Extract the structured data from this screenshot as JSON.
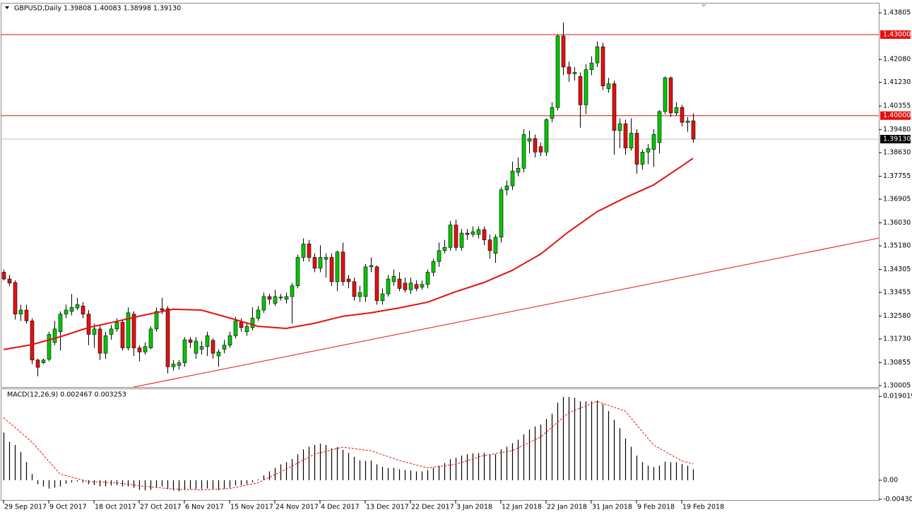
{
  "chart_data": [
    {
      "type": "candlestick",
      "title": "GBPUSD,Daily  1.39808 1.40083 1.38998 1.39130",
      "categories": [
        "29 Sep 2017",
        null,
        null,
        null,
        null,
        null,
        null,
        null,
        "9 Oct 2017",
        null,
        null,
        null,
        null,
        null,
        null,
        null,
        "18 Oct 2017",
        null,
        null,
        null,
        null,
        null,
        null,
        null,
        "27 Oct 2017",
        null,
        null,
        null,
        null,
        null,
        null,
        null,
        "6 Nov 2017",
        null,
        null,
        null,
        null,
        null,
        null,
        null,
        "15 Nov 2017",
        null,
        null,
        null,
        null,
        null,
        null,
        null,
        "24 Nov 2017",
        null,
        null,
        null,
        null,
        null,
        null,
        null,
        "4 Dec 2017",
        null,
        null,
        null,
        null,
        null,
        null,
        null,
        "13 Dec 2017",
        null,
        null,
        null,
        null,
        null,
        null,
        null,
        "22 Dec 2017",
        null,
        null,
        null,
        null,
        null,
        null,
        null,
        "3 Jan 2018",
        null,
        null,
        null,
        null,
        null,
        null,
        null,
        "12 Jan 2018",
        null,
        null,
        null,
        null,
        null,
        null,
        null,
        "22 Jan 2018",
        null,
        null,
        null,
        null,
        null,
        null,
        null,
        "31 Jan 2018",
        null,
        null,
        null,
        null,
        null,
        null,
        null,
        "9 Feb 2018",
        null,
        null,
        null,
        null,
        null,
        null,
        null,
        "19 Feb 2018",
        null,
        null
      ],
      "open": [
        1.342,
        1.3395,
        1.3382,
        1.3265,
        1.328,
        1.324,
        1.3095,
        1.3085,
        1.3098,
        1.316,
        1.32,
        1.3265,
        1.3275,
        1.3288,
        1.3295,
        1.3265,
        1.319,
        1.321,
        1.312,
        1.319,
        1.321,
        1.3235,
        1.314,
        1.3265,
        1.314,
        1.3125,
        1.314,
        1.321,
        1.3285,
        1.3285,
        1.307,
        1.3075,
        1.3085,
        1.317,
        1.312,
        1.3135,
        1.3145,
        1.3168,
        1.311,
        1.3135,
        1.315,
        1.3185,
        1.3235,
        1.32,
        1.3215,
        1.325,
        1.328,
        1.333,
        1.3305,
        1.3328,
        1.332,
        1.333,
        1.337,
        1.3475,
        1.3525,
        1.3475,
        1.3435,
        1.3468,
        1.3475,
        1.3385,
        1.3495,
        1.3395,
        1.3385,
        1.333,
        1.333,
        1.344,
        1.344,
        1.3315,
        1.334,
        1.3385,
        1.3395,
        1.338,
        1.3355,
        1.3375,
        1.3365,
        1.3375,
        1.342,
        1.346,
        1.35,
        1.3512,
        1.3595,
        1.3512,
        1.3565,
        1.356,
        1.356,
        1.3578,
        1.354,
        1.349,
        1.355,
        1.3725,
        1.374,
        1.379,
        1.3805,
        1.3905,
        1.3915,
        1.3885,
        1.3865,
        1.399,
        1.403,
        1.4295,
        1.418,
        1.4155,
        1.4145,
        1.404,
        1.417,
        1.4195,
        1.4255,
        1.41,
        1.4118,
        1.3945,
        1.397,
        1.388,
        1.3935,
        1.382,
        1.3865,
        1.3875,
        1.39,
        1.4015,
        1.414,
        1.401,
        1.403,
        1.3975,
        1.39808
      ],
      "high": [
        1.343,
        1.341,
        1.339,
        1.33,
        1.33,
        1.325,
        1.31,
        1.31,
        1.32,
        1.324,
        1.3275,
        1.33,
        1.334,
        1.3325,
        1.331,
        1.328,
        1.323,
        1.3225,
        1.32,
        1.3225,
        1.325,
        1.3245,
        1.329,
        1.3275,
        1.315,
        1.316,
        1.322,
        1.329,
        1.3325,
        1.3295,
        1.3095,
        1.3095,
        1.318,
        1.318,
        1.318,
        1.3165,
        1.32,
        1.3175,
        1.3135,
        1.317,
        1.32,
        1.3255,
        1.325,
        1.3235,
        1.329,
        1.3295,
        1.3345,
        1.334,
        1.3355,
        1.334,
        1.3345,
        1.338,
        1.3485,
        1.3545,
        1.354,
        1.349,
        1.352,
        1.349,
        1.349,
        1.35,
        1.353,
        1.341,
        1.34,
        1.337,
        1.345,
        1.3475,
        1.3445,
        1.336,
        1.341,
        1.343,
        1.342,
        1.34,
        1.34,
        1.339,
        1.339,
        1.343,
        1.347,
        1.353,
        1.354,
        1.361,
        1.3615,
        1.358,
        1.358,
        1.359,
        1.359,
        1.359,
        1.356,
        1.356,
        1.3735,
        1.376,
        1.383,
        1.3845,
        1.395,
        1.3945,
        1.393,
        1.39,
        1.399,
        1.405,
        1.43,
        1.4345,
        1.42,
        1.418,
        1.416,
        1.419,
        1.422,
        1.4275,
        1.427,
        1.414,
        1.413,
        1.399,
        1.3985,
        1.399,
        1.395,
        1.3875,
        1.3895,
        1.395,
        1.402,
        1.4145,
        1.4145,
        1.405,
        1.404,
        1.3995,
        1.40083
      ],
      "low": [
        1.339,
        1.337,
        1.3245,
        1.324,
        1.323,
        1.308,
        1.3035,
        1.308,
        1.309,
        1.315,
        1.313,
        1.325,
        1.326,
        1.328,
        1.325,
        1.315,
        1.314,
        1.3095,
        1.31,
        1.317,
        1.32,
        1.313,
        1.313,
        1.311,
        1.309,
        1.3115,
        1.3135,
        1.32,
        1.3265,
        1.3045,
        1.3055,
        1.306,
        1.307,
        1.314,
        1.31,
        1.3115,
        1.311,
        1.31,
        1.307,
        1.312,
        1.314,
        1.3175,
        1.32,
        1.3185,
        1.3205,
        1.324,
        1.327,
        1.33,
        1.3295,
        1.3315,
        1.3305,
        1.323,
        1.336,
        1.346,
        1.346,
        1.342,
        1.342,
        1.34,
        1.337,
        1.335,
        1.337,
        1.336,
        1.3315,
        1.331,
        1.331,
        1.342,
        1.33,
        1.33,
        1.333,
        1.337,
        1.335,
        1.3345,
        1.334,
        1.335,
        1.3355,
        1.336,
        1.3405,
        1.344,
        1.349,
        1.35,
        1.35,
        1.35,
        1.354,
        1.355,
        1.3545,
        1.352,
        1.347,
        1.3455,
        1.353,
        1.3705,
        1.3725,
        1.3775,
        1.379,
        1.386,
        1.3845,
        1.385,
        1.385,
        1.3975,
        1.402,
        1.415,
        1.4125,
        1.413,
        1.3955,
        1.4005,
        1.415,
        1.418,
        1.4095,
        1.4085,
        1.3855,
        1.388,
        1.3855,
        1.387,
        1.3785,
        1.38,
        1.382,
        1.381,
        1.386,
        1.4005,
        1.3995,
        1.4,
        1.396,
        1.394,
        1.38998
      ],
      "close": [
        1.3395,
        1.338,
        1.3265,
        1.328,
        1.324,
        1.3095,
        1.3068,
        1.3095,
        1.319,
        1.321,
        1.3265,
        1.328,
        1.329,
        1.33,
        1.3265,
        1.319,
        1.321,
        1.312,
        1.3185,
        1.321,
        1.3235,
        1.314,
        1.327,
        1.314,
        1.3125,
        1.3145,
        1.321,
        1.3275,
        1.328,
        1.307,
        1.308,
        1.3085,
        1.317,
        1.316,
        1.3165,
        1.3145,
        1.3185,
        1.312,
        1.3125,
        1.315,
        1.3185,
        1.324,
        1.3215,
        1.322,
        1.325,
        1.328,
        1.333,
        1.332,
        1.333,
        1.3325,
        1.333,
        1.337,
        1.3475,
        1.3525,
        1.3475,
        1.3435,
        1.3475,
        1.3475,
        1.3385,
        1.3495,
        1.3385,
        1.3385,
        1.333,
        1.3345,
        1.344,
        1.3445,
        1.3315,
        1.334,
        1.3395,
        1.3405,
        1.336,
        1.3355,
        1.338,
        1.336,
        1.3375,
        1.342,
        1.346,
        1.35,
        1.3512,
        1.3595,
        1.3512,
        1.3565,
        1.356,
        1.357,
        1.3578,
        1.354,
        1.35,
        1.355,
        1.3725,
        1.374,
        1.3795,
        1.3805,
        1.393,
        1.3915,
        1.3865,
        1.3865,
        1.3985,
        1.403,
        1.4295,
        1.418,
        1.4155,
        1.416,
        1.404,
        1.417,
        1.4195,
        1.4255,
        1.411,
        1.4118,
        1.3945,
        1.397,
        1.388,
        1.3935,
        1.382,
        1.3865,
        1.3878,
        1.393,
        1.4015,
        1.414,
        1.401,
        1.403,
        1.3975,
        1.398,
        1.3913
      ],
      "up_color": "#00c800",
      "down_color": "#e41010",
      "xlim": [
        -0.5,
        154.875
      ],
      "ylim": [
        1.2995,
        1.4415
      ],
      "yticks": [
        1.43805,
        {
          "value": 1.4208,
          "label": "1.42080"
        },
        {
          "value": 1.4123,
          "label": "1.41230"
        },
        1.40355,
        {
          "value": 1.3948,
          "label": "1.39480"
        },
        {
          "value": 1.3863,
          "label": "1.38630"
        },
        1.37755,
        1.36905,
        {
          "value": 1.3603,
          "label": "1.36030"
        },
        {
          "value": 1.3518,
          "label": "1.35180"
        },
        1.34305,
        1.33455,
        {
          "value": 1.3258,
          "label": "1.32580"
        },
        {
          "value": 1.3173,
          "label": "1.31730"
        },
        1.30855,
        1.30005
      ],
      "moving_average": {
        "color": "#e41010",
        "x": [
          0,
          5,
          10,
          15,
          20,
          25,
          30,
          35,
          40,
          45,
          50,
          55,
          60,
          65,
          70,
          75,
          80,
          85,
          90,
          95,
          100,
          105,
          110,
          115,
          120,
          122
        ],
        "values": [
          1.3134,
          1.3152,
          1.3181,
          1.3215,
          1.3238,
          1.3262,
          1.3283,
          1.328,
          1.3251,
          1.322,
          1.3212,
          1.3231,
          1.3257,
          1.327,
          1.3288,
          1.3309,
          1.3348,
          1.3382,
          1.3427,
          1.3487,
          1.357,
          1.3644,
          1.3696,
          1.3743,
          1.3813,
          1.3842
        ]
      },
      "trendline": {
        "color": "#e41010",
        "x": [
          23,
          155
        ],
        "values": [
          1.2995,
          1.3547
        ]
      },
      "hlines": [
        {
          "value": 1.43,
          "label": "1.43000",
          "color": "#e41010"
        },
        {
          "value": 1.4,
          "label": "1.40000",
          "color": "#e41010"
        }
      ],
      "last_price": {
        "value": 1.3913,
        "label": "1.39130",
        "color": "#c0c0c0"
      }
    },
    {
      "type": "macd",
      "title": "MACD(12,26,9) 0.002467 0.003253",
      "values": [
        0.0108,
        0.0087,
        0.008,
        0.0064,
        0.0041,
        0.0014,
        -0.0009,
        -0.0014,
        -0.0019,
        -0.0017,
        -0.0014,
        -0.0008,
        -0.0005,
        -0.0003,
        -0.0005,
        -0.0009,
        -0.0011,
        -0.0014,
        -0.0014,
        -0.0012,
        -0.0011,
        -0.0014,
        -0.0014,
        -0.0017,
        -0.0022,
        -0.0023,
        -0.0022,
        -0.0017,
        -0.0014,
        -0.002,
        -0.0023,
        -0.0025,
        -0.0022,
        -0.002,
        -0.002,
        -0.002,
        -0.0019,
        -0.002,
        -0.0022,
        -0.002,
        -0.0017,
        -0.0012,
        -0.0011,
        -0.0009,
        -0.0005,
        0.0002,
        0.0011,
        0.002,
        0.0028,
        0.0036,
        0.0041,
        0.0048,
        0.0059,
        0.007,
        0.0076,
        0.008,
        0.0083,
        0.008,
        0.0072,
        0.0075,
        0.0069,
        0.0062,
        0.0053,
        0.0045,
        0.0044,
        0.0045,
        0.0036,
        0.003,
        0.0028,
        0.0028,
        0.0025,
        0.0023,
        0.0022,
        0.002,
        0.002,
        0.0023,
        0.0028,
        0.0033,
        0.0039,
        0.0048,
        0.0051,
        0.0056,
        0.0059,
        0.0061,
        0.0062,
        0.0062,
        0.0059,
        0.0059,
        0.007,
        0.0076,
        0.0084,
        0.0092,
        0.0104,
        0.0115,
        0.0122,
        0.0126,
        0.0139,
        0.0151,
        0.0176,
        0.0189,
        0.0189,
        0.0187,
        0.0179,
        0.0179,
        0.0179,
        0.0181,
        0.0173,
        0.0157,
        0.0137,
        0.0118,
        0.0095,
        0.0076,
        0.0056,
        0.0041,
        0.0033,
        0.003,
        0.0033,
        0.0042,
        0.0041,
        0.0041,
        0.0037,
        0.0033,
        0.0025
      ],
      "bar_color": "#000000",
      "signal": {
        "color": "#e41010",
        "x": [
          0,
          5,
          10,
          15,
          20,
          25,
          30,
          35,
          40,
          45,
          50,
          55,
          60,
          65,
          70,
          75,
          80,
          85,
          90,
          95,
          100,
          105,
          110,
          115,
          120,
          122
        ],
        "values": [
          0.0142,
          0.0087,
          0.0014,
          -0.0003,
          -0.0006,
          -0.0014,
          -0.002,
          -0.0022,
          -0.0019,
          -0.0006,
          0.0025,
          0.0059,
          0.0075,
          0.0067,
          0.0045,
          0.0028,
          0.0036,
          0.0056,
          0.0067,
          0.0098,
          0.0153,
          0.0179,
          0.0157,
          0.008,
          0.0044,
          0.0037
        ]
      },
      "ylim": [
        -0.0045,
        0.0205
      ],
      "yticks": [
        0.019019,
        {
          "value": 0,
          "label": "0.00"
        },
        -0.004307
      ]
    }
  ]
}
